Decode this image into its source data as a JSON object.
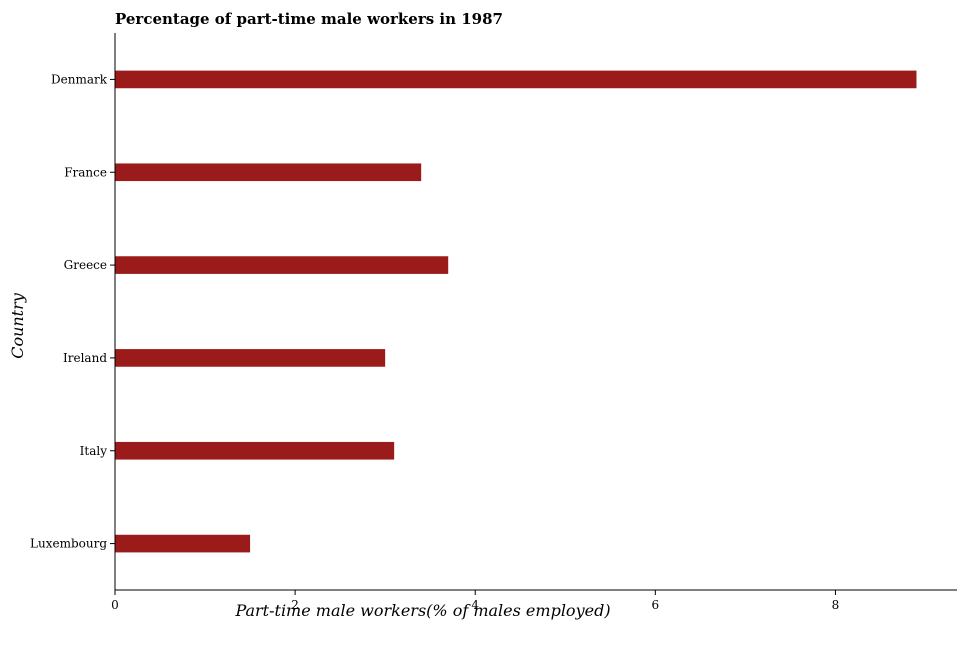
{
  "chart_data": {
    "type": "bar",
    "orientation": "horizontal",
    "title": "Percentage of part-time male workers in 1987",
    "xlabel": "Part-time male workers(% of males employed)",
    "ylabel": "Country",
    "categories": [
      "Denmark",
      "France",
      "Greece",
      "Ireland",
      "Italy",
      "Luxembourg"
    ],
    "values": [
      8.9,
      3.4,
      3.7,
      3.0,
      3.1,
      1.5
    ],
    "xlim": [
      0,
      9.35
    ],
    "xticks": [
      0,
      2,
      4,
      6,
      8
    ],
    "xtick_labels": [
      "0",
      "2",
      "4",
      "6",
      "8"
    ],
    "grid": false,
    "legend": "none",
    "colors": {
      "bar": "#9b1b1b",
      "axis": "#000000"
    }
  }
}
